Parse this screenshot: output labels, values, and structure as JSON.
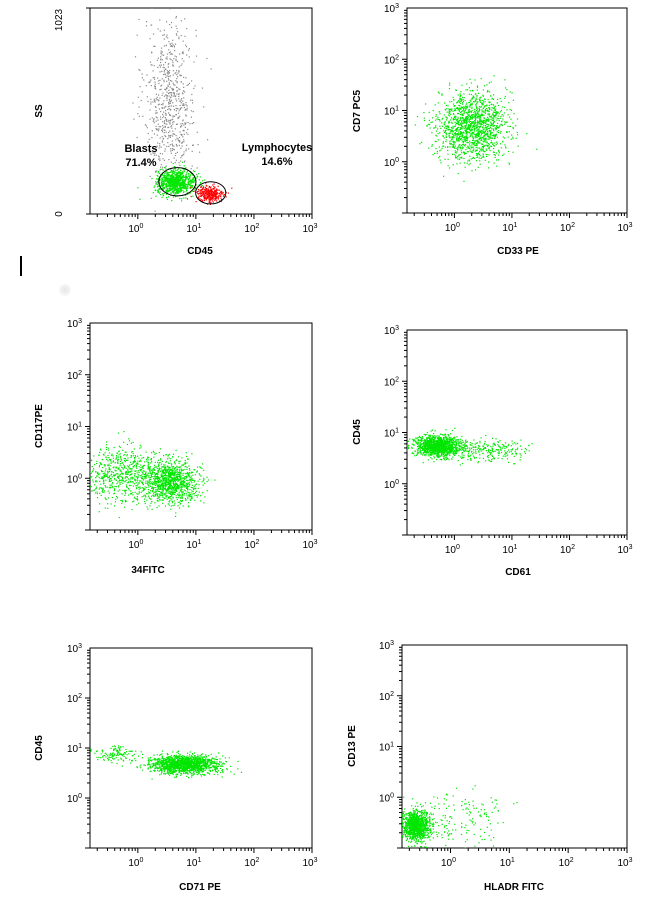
{
  "chart_data": [
    {
      "type": "scatter",
      "xlabel": "CD45",
      "ylabel": "SS",
      "xscale": "log",
      "yscale": "linear",
      "xlim": [
        0.15,
        1000
      ],
      "ylim": [
        0,
        1023
      ],
      "x_ticks": [
        {
          "value": 1,
          "label": "10",
          "exp": "0"
        },
        {
          "value": 10,
          "label": "10",
          "exp": "1"
        },
        {
          "value": 100,
          "label": "10",
          "exp": "2"
        },
        {
          "value": 1000,
          "label": "10",
          "exp": "3"
        }
      ],
      "y_ticks": [
        {
          "value": 0,
          "label": "0",
          "exp": ""
        },
        {
          "value": 1023,
          "label": "1023",
          "exp": ""
        }
      ],
      "series": [
        {
          "color": "#8c8c8c",
          "center": [
            3.5,
            560
          ],
          "spread": [
            0.22,
            210
          ],
          "count": 700
        },
        {
          "color": "#00e600",
          "center": [
            4.5,
            160
          ],
          "spread": [
            0.16,
            30
          ],
          "count": 900
        },
        {
          "color": "#ff0000",
          "center": [
            17,
            100
          ],
          "spread": [
            0.12,
            22
          ],
          "count": 320
        }
      ],
      "gates": [
        {
          "name": "Blasts",
          "value": "71.4%",
          "center": [
            4.8,
            160
          ],
          "radius": [
            0.32,
            70
          ]
        },
        {
          "name": "Lymphocytes",
          "value": "14.6%",
          "center": [
            18,
            105
          ],
          "radius": [
            0.26,
            55
          ]
        }
      ]
    },
    {
      "type": "scatter",
      "xlabel": "CD33 PE",
      "ylabel": "CD7 PC5",
      "xscale": "log",
      "yscale": "log",
      "xlim": [
        0.15,
        1000
      ],
      "ylim": [
        0.1,
        1000
      ],
      "x_ticks": [
        {
          "value": 1,
          "label": "10",
          "exp": "0"
        },
        {
          "value": 10,
          "label": "10",
          "exp": "1"
        },
        {
          "value": 100,
          "label": "10",
          "exp": "2"
        },
        {
          "value": 1000,
          "label": "10",
          "exp": "3"
        }
      ],
      "y_ticks": [
        {
          "value": 1,
          "label": "10",
          "exp": "0"
        },
        {
          "value": 10,
          "label": "10",
          "exp": "1"
        },
        {
          "value": 100,
          "label": "10",
          "exp": "2"
        },
        {
          "value": 1000,
          "label": "10",
          "exp": "3"
        }
      ],
      "series": [
        {
          "color": "#00e600",
          "center": [
            2,
            5
          ],
          "spread": [
            0.3,
            0.33
          ],
          "count": 1500
        }
      ]
    },
    {
      "type": "scatter",
      "xlabel": "34FITC",
      "ylabel": "CD117PE",
      "xscale": "log",
      "yscale": "log",
      "xlim": [
        0.15,
        1000
      ],
      "ylim": [
        0.1,
        1000
      ],
      "x_ticks": [
        {
          "value": 1,
          "label": "10",
          "exp": "0"
        },
        {
          "value": 10,
          "label": "10",
          "exp": "1"
        },
        {
          "value": 100,
          "label": "10",
          "exp": "2"
        },
        {
          "value": 1000,
          "label": "10",
          "exp": "3"
        }
      ],
      "y_ticks": [
        {
          "value": 1,
          "label": "10",
          "exp": "0"
        },
        {
          "value": 10,
          "label": "10",
          "exp": "1"
        },
        {
          "value": 100,
          "label": "10",
          "exp": "2"
        },
        {
          "value": 1000,
          "label": "10",
          "exp": "3"
        }
      ],
      "series": [
        {
          "color": "#00e600",
          "center": [
            3.5,
            0.9
          ],
          "spread": [
            0.25,
            0.2
          ],
          "count": 1100
        },
        {
          "color": "#00e600",
          "center": [
            0.5,
            1.2
          ],
          "spread": [
            0.3,
            0.28
          ],
          "count": 600
        }
      ]
    },
    {
      "type": "scatter",
      "xlabel": "CD61",
      "ylabel": "CD45",
      "xscale": "log",
      "yscale": "log",
      "xlim": [
        0.15,
        1000
      ],
      "ylim": [
        0.1,
        1000
      ],
      "x_ticks": [
        {
          "value": 1,
          "label": "10",
          "exp": "0"
        },
        {
          "value": 10,
          "label": "10",
          "exp": "1"
        },
        {
          "value": 100,
          "label": "10",
          "exp": "2"
        },
        {
          "value": 1000,
          "label": "10",
          "exp": "3"
        }
      ],
      "y_ticks": [
        {
          "value": 1,
          "label": "10",
          "exp": "0"
        },
        {
          "value": 10,
          "label": "10",
          "exp": "1"
        },
        {
          "value": 100,
          "label": "10",
          "exp": "2"
        },
        {
          "value": 1000,
          "label": "10",
          "exp": "3"
        }
      ],
      "series": [
        {
          "color": "#00e600",
          "center": [
            0.5,
            5.5
          ],
          "spread": [
            0.2,
            0.1
          ],
          "count": 1300
        },
        {
          "color": "#00e600",
          "center": [
            4,
            4.5
          ],
          "spread": [
            0.35,
            0.1
          ],
          "count": 250
        }
      ]
    },
    {
      "type": "scatter",
      "xlabel": "CD71 PE",
      "ylabel": "CD45",
      "xscale": "log",
      "yscale": "log",
      "xlim": [
        0.15,
        1000
      ],
      "ylim": [
        0.1,
        1000
      ],
      "x_ticks": [
        {
          "value": 1,
          "label": "10",
          "exp": "0"
        },
        {
          "value": 10,
          "label": "10",
          "exp": "1"
        },
        {
          "value": 100,
          "label": "10",
          "exp": "2"
        },
        {
          "value": 1000,
          "label": "10",
          "exp": "3"
        }
      ],
      "y_ticks": [
        {
          "value": 1,
          "label": "10",
          "exp": "0"
        },
        {
          "value": 10,
          "label": "10",
          "exp": "1"
        },
        {
          "value": 100,
          "label": "10",
          "exp": "2"
        },
        {
          "value": 1000,
          "label": "10",
          "exp": "3"
        }
      ],
      "series": [
        {
          "color": "#00e600",
          "center": [
            6,
            4.8
          ],
          "spread": [
            0.3,
            0.09
          ],
          "count": 1500
        },
        {
          "color": "#00e600",
          "center": [
            0.4,
            8
          ],
          "spread": [
            0.2,
            0.08
          ],
          "count": 120
        }
      ]
    },
    {
      "type": "scatter",
      "xlabel": "HLADR FITC",
      "ylabel": "CD13 PE",
      "xscale": "log",
      "yscale": "log",
      "xlim": [
        0.15,
        1000
      ],
      "ylim": [
        0.1,
        1000
      ],
      "x_ticks": [
        {
          "value": 1,
          "label": "10",
          "exp": "0"
        },
        {
          "value": 10,
          "label": "10",
          "exp": "1"
        },
        {
          "value": 100,
          "label": "10",
          "exp": "2"
        },
        {
          "value": 1000,
          "label": "10",
          "exp": "3"
        }
      ],
      "y_ticks": [
        {
          "value": 1,
          "label": "10",
          "exp": "0"
        },
        {
          "value": 10,
          "label": "10",
          "exp": "1"
        },
        {
          "value": 100,
          "label": "10",
          "exp": "2"
        },
        {
          "value": 1000,
          "label": "10",
          "exp": "3"
        }
      ],
      "series": [
        {
          "color": "#00e600",
          "center": [
            0.25,
            0.28
          ],
          "spread": [
            0.12,
            0.15
          ],
          "count": 1100
        },
        {
          "color": "#00e600",
          "center": [
            1.5,
            0.4
          ],
          "spread": [
            0.4,
            0.3
          ],
          "count": 150
        }
      ]
    }
  ]
}
